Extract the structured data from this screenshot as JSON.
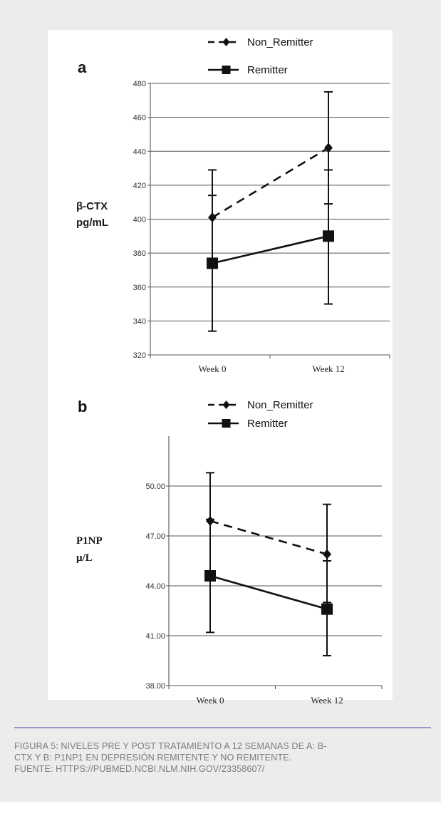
{
  "caption": {
    "line1": "FIGURA 5: NIVELES PRE Y POST TRATAMIENTO A 12 SEMANAS DE A: B-",
    "line2": "CTX Y B: P1NP1 EN DEPRESIÓN REMITENTE Y NO REMITENTE.",
    "line3": "FUENTE: HTTPS://PUBMED.NCBI.NLM.NIH.GOV/23358607/"
  },
  "colors": {
    "card_background": "#ececec",
    "panel_background": "#ffffff",
    "divider": "#9d96c6",
    "caption_text": "#7d7d7d",
    "series_lines": "#111111",
    "gridlines": "#555555"
  },
  "chart_data": [
    {
      "type": "line",
      "panel_label": "a",
      "title": "",
      "ylabel_lines": [
        "β-CTX",
        "pg/mL"
      ],
      "xlabel": "",
      "categories": [
        "Week 0",
        "Week 12"
      ],
      "ylim": [
        320,
        480
      ],
      "yticks": [
        320,
        340,
        360,
        380,
        400,
        420,
        440,
        460,
        480
      ],
      "ytick_labels": [
        "320",
        "340",
        "360",
        "380",
        "400",
        "420",
        "440",
        "460",
        "480"
      ],
      "grid": true,
      "legend_position": "top",
      "series": [
        {
          "name": "Non_Remitter",
          "line_style": "dashed",
          "marker": "diamond",
          "values": [
            401,
            442
          ],
          "error_low": [
            373,
            409
          ],
          "error_high": [
            429,
            475
          ]
        },
        {
          "name": "Remitter",
          "line_style": "solid",
          "marker": "square",
          "values": [
            374,
            390
          ],
          "error_low": [
            334,
            350
          ],
          "error_high": [
            414,
            429
          ]
        }
      ]
    },
    {
      "type": "line",
      "panel_label": "b",
      "title": "",
      "ylabel_lines": [
        "P1NP",
        "µ/L"
      ],
      "xlabel": "",
      "categories": [
        "Week 0",
        "Week 12"
      ],
      "ylim": [
        38,
        53
      ],
      "yticks": [
        38,
        41,
        44,
        47,
        50
      ],
      "ytick_labels": [
        "38.00",
        "41.00",
        "44.00",
        "47.00",
        "50.00"
      ],
      "grid": true,
      "legend_position": "top",
      "series": [
        {
          "name": "Non_Remitter",
          "line_style": "dashed",
          "marker": "diamond",
          "values": [
            47.9,
            45.9
          ],
          "error_low": [
            44.8,
            43.0
          ],
          "error_high": [
            50.8,
            48.9
          ]
        },
        {
          "name": "Remitter",
          "line_style": "solid",
          "marker": "square",
          "values": [
            44.6,
            42.6
          ],
          "error_low": [
            41.2,
            39.8
          ],
          "error_high": [
            48.0,
            45.5
          ]
        }
      ]
    }
  ]
}
